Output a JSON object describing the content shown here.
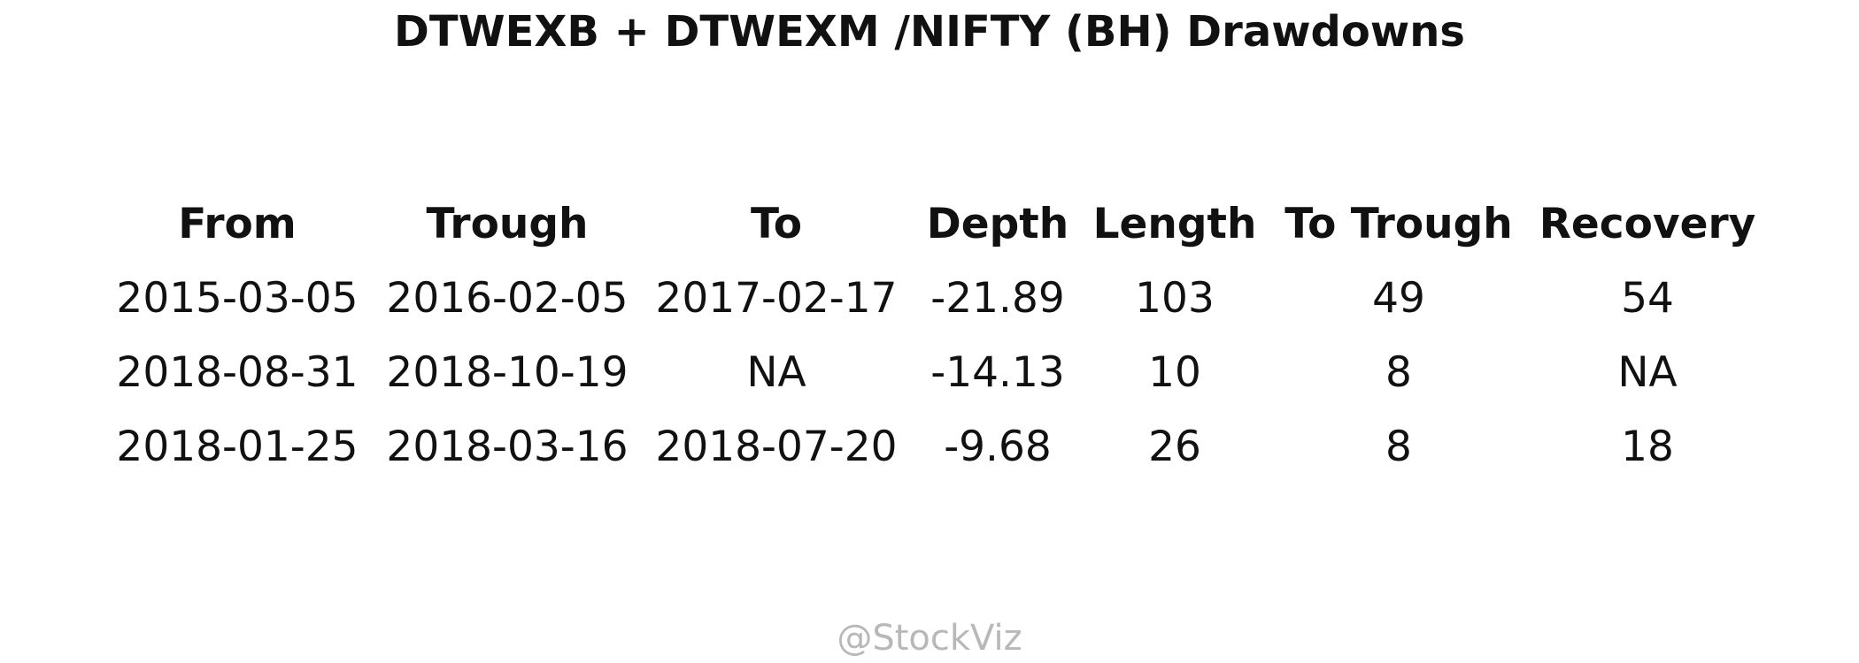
{
  "chart_data": {
    "type": "table",
    "title": "DTWEXB + DTWEXM /NIFTY (BH) Drawdowns",
    "columns": [
      "From",
      "Trough",
      "To",
      "Depth",
      "Length",
      "To Trough",
      "Recovery"
    ],
    "rows": [
      [
        "2015-03-05",
        "2016-02-05",
        "2017-02-17",
        "-21.89",
        "103",
        "49",
        "54"
      ],
      [
        "2018-08-31",
        "2018-10-19",
        "NA",
        "-14.13",
        "10",
        "8",
        "NA"
      ],
      [
        "2018-01-25",
        "2018-03-16",
        "2018-07-20",
        "-9.68",
        "26",
        "8",
        "18"
      ]
    ]
  },
  "watermark": "@StockViz"
}
